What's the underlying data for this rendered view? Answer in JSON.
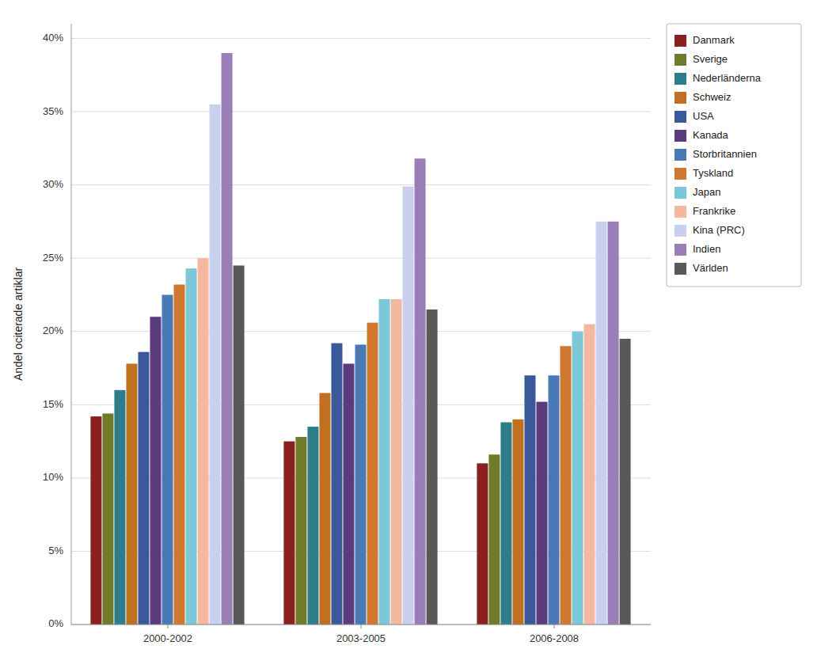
{
  "chart_data": {
    "type": "bar",
    "categories": [
      "2000-2002",
      "2003-2005",
      "2006-2008"
    ],
    "series": [
      {
        "name": "Danmark",
        "color": "#8B2020",
        "values": [
          0.142,
          0.125,
          0.11
        ]
      },
      {
        "name": "Sverige",
        "color": "#6E7B2A",
        "values": [
          0.144,
          0.128,
          0.116
        ]
      },
      {
        "name": "Nederländerna",
        "color": "#2E7D8A",
        "values": [
          0.16,
          0.135,
          0.138
        ]
      },
      {
        "name": "Schweiz",
        "color": "#C07020",
        "values": [
          0.178,
          0.158,
          0.14
        ]
      },
      {
        "name": "USA",
        "color": "#3B5998",
        "values": [
          0.186,
          0.192,
          0.17
        ]
      },
      {
        "name": "Kanada",
        "color": "#5B3A7E",
        "values": [
          0.21,
          0.178,
          0.152
        ]
      },
      {
        "name": "Storbritannien",
        "color": "#4A7AB5",
        "values": [
          0.225,
          0.191,
          0.17
        ]
      },
      {
        "name": "Tyskland",
        "color": "#D07830",
        "values": [
          0.232,
          0.206,
          0.19
        ]
      },
      {
        "name": "Japan",
        "color": "#7DC8D8",
        "values": [
          0.243,
          0.222,
          0.2
        ]
      },
      {
        "name": "Frankrike",
        "color": "#F4B8A0",
        "values": [
          0.25,
          0.222,
          0.205
        ]
      },
      {
        "name": "Kina (PRC)",
        "color": "#C8D0EE",
        "values": [
          0.355,
          0.299,
          0.275
        ]
      },
      {
        "name": "Indien",
        "color": "#9B7EB8",
        "values": [
          0.39,
          0.318,
          0.275
        ]
      },
      {
        "name": "Världen",
        "color": "#595959",
        "values": [
          0.245,
          0.215,
          0.195
        ]
      }
    ],
    "ylabel": "Andel ociterade artiklar",
    "ylim": [
      0.0,
      0.41
    ],
    "yticks": [
      {
        "value": 0.0,
        "label": "0%"
      },
      {
        "value": 0.05,
        "label": "5%"
      },
      {
        "value": 0.1,
        "label": "10%"
      },
      {
        "value": 0.15,
        "label": "15%"
      },
      {
        "value": 0.2,
        "label": "20%"
      },
      {
        "value": 0.25,
        "label": "25%"
      },
      {
        "value": 0.3,
        "label": "30%"
      },
      {
        "value": 0.35,
        "label": "35%"
      },
      {
        "value": 0.4,
        "label": "40%"
      }
    ],
    "grid": true,
    "legend": "right"
  }
}
